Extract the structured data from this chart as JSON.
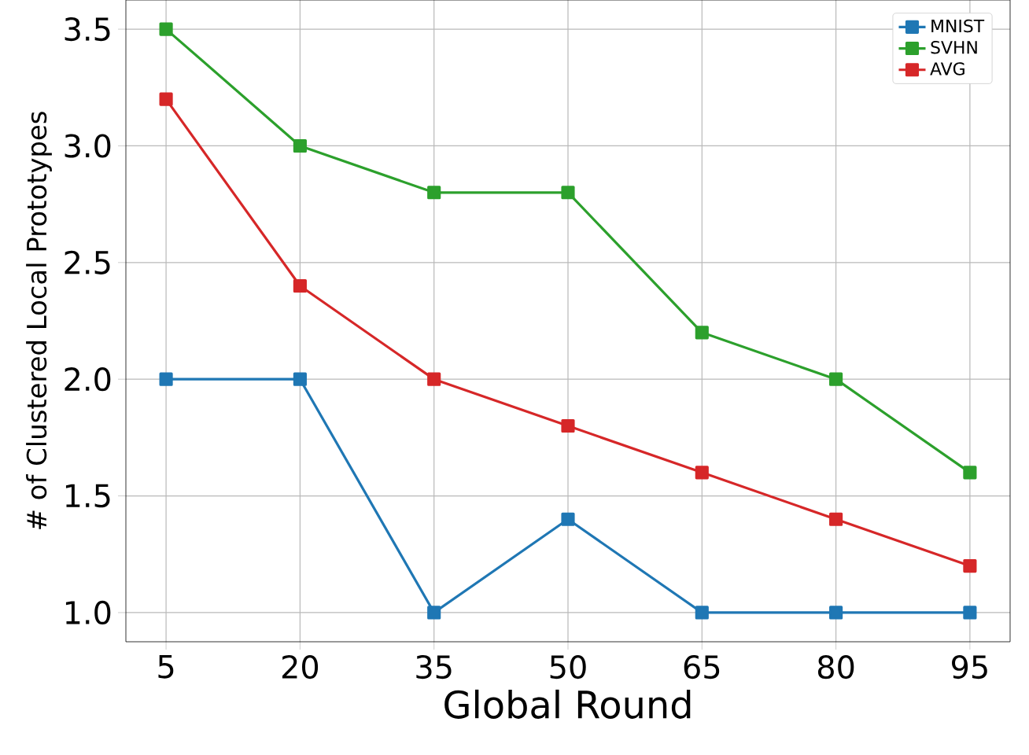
{
  "chart_data": {
    "type": "line",
    "xlabel": "Global Round",
    "ylabel": "# of Clustered Local Prototypes",
    "x": [
      5,
      20,
      35,
      50,
      65,
      80,
      95
    ],
    "series": [
      {
        "name": "MNIST",
        "color": "#1f77b4",
        "values": [
          2.0,
          2.0,
          1.0,
          1.4,
          1.0,
          1.0,
          1.0
        ]
      },
      {
        "name": "SVHN",
        "color": "#2ca02c",
        "values": [
          3.5,
          3.0,
          2.8,
          2.8,
          2.2,
          2.0,
          1.6
        ]
      },
      {
        "name": "AVG",
        "color": "#d62728",
        "values": [
          3.2,
          2.4,
          2.0,
          1.8,
          1.6,
          1.4,
          1.2
        ]
      }
    ],
    "xlim": [
      0.5,
      99.5
    ],
    "ylim": [
      0.875,
      3.625
    ],
    "xticks": [
      5,
      20,
      35,
      50,
      65,
      80,
      95
    ],
    "yticks": [
      {
        "value": 1,
        "label": "1.0"
      },
      1.5,
      {
        "value": 2,
        "label": "2.0"
      },
      2.5,
      {
        "value": 3,
        "label": "3.0"
      },
      3.5
    ],
    "grid": true,
    "legend": "top right",
    "marker": "square",
    "line_style": "solid"
  }
}
